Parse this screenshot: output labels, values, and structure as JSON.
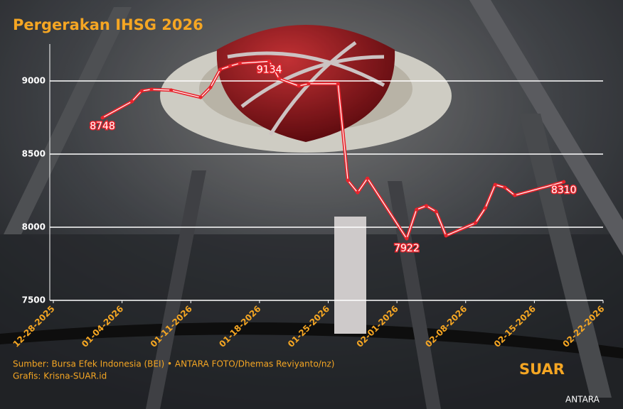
{
  "chart_data": {
    "type": "line",
    "title": "Pergerakan IHSG 2026",
    "x": [
      "2026-01-02",
      "2026-01-05",
      "2026-01-06",
      "2026-01-07",
      "2026-01-09",
      "2026-01-12",
      "2026-01-13",
      "2026-01-14",
      "2026-01-15",
      "2026-01-16",
      "2026-01-19",
      "2026-01-20",
      "2026-01-22",
      "2026-01-23",
      "2026-01-26",
      "2026-01-27",
      "2026-01-28",
      "2026-01-29",
      "2026-02-02",
      "2026-02-03",
      "2026-02-04",
      "2026-02-05",
      "2026-02-06",
      "2026-02-09",
      "2026-02-10",
      "2026-02-11",
      "2026-02-12",
      "2026-02-13",
      "2026-02-18"
    ],
    "series": [
      {
        "name": "IHSG",
        "color": "#e8242c",
        "values": [
          8748,
          8859,
          8932,
          8942,
          8937,
          8888,
          8956,
          9078,
          9102,
          9121,
          9134,
          9015,
          8966,
          8981,
          8981,
          8320,
          8237,
          8334,
          7922,
          8121,
          8146,
          8107,
          7942,
          8029,
          8131,
          8291,
          8272,
          8218,
          8310
        ]
      }
    ],
    "xlim": [
      "2025-12-28",
      "2026-02-22"
    ],
    "xticks": [
      {
        "value": "2025-12-28",
        "label": "12-28-2025"
      },
      {
        "value": "2026-01-04",
        "label": "01-04-2026"
      },
      {
        "value": "2026-01-11",
        "label": "01-11-2026"
      },
      {
        "value": "2026-01-18",
        "label": "01-18-2026"
      },
      {
        "value": "2026-01-25",
        "label": "01-25-2026"
      },
      {
        "value": "2026-02-01",
        "label": "02-01-2026"
      },
      {
        "value": "2026-02-08",
        "label": "02-08-2026"
      },
      {
        "value": "2026-02-15",
        "label": "02-15-2026"
      },
      {
        "value": "2026-02-22",
        "label": "02-22-2026"
      }
    ],
    "ylim": [
      7500,
      9250
    ],
    "yticks": [
      7500,
      8000,
      8500,
      9000
    ],
    "grid": true,
    "source": "Sumber: Bursa Efek Indonesia (BEI) • ANTARA FOTO/Dhemas Reviyanto/nz)",
    "credit": "Grafis: Krisna-SUAR.id",
    "logo": "SUAR",
    "photo_credit": "ANTARA"
  }
}
